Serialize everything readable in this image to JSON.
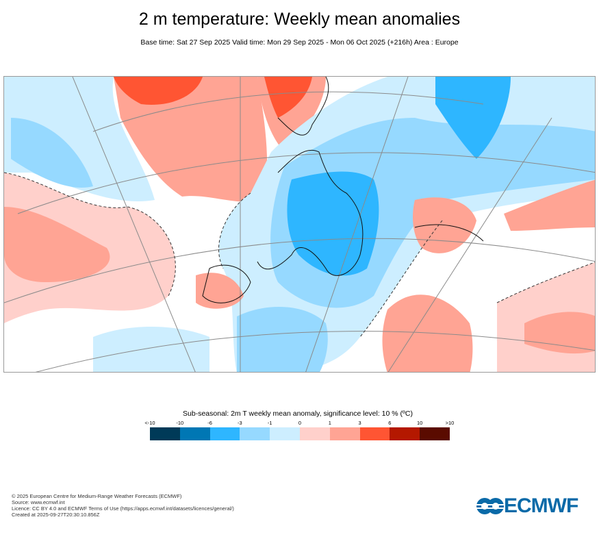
{
  "header": {
    "title": "2 m temperature: Weekly mean anomalies",
    "subtitle": "Base time: Sat 27 Sep 2025 Valid time: Mon 29 Sep 2025 - Mon 06 Oct 2025 (+216h) Area : Europe"
  },
  "map": {
    "area": "Europe",
    "summary_colors": {
      "cold_core": "#2eb6ff",
      "cool": "#96d9ff",
      "slight_cool": "#cdeeff",
      "slight_warm": "#ffd0cb",
      "warm": "#ffa494",
      "hot": "#ff5533"
    }
  },
  "colorbar": {
    "title": "Sub-seasonal: 2m T weekly mean anomaly, significance level: 10 % (ºC)",
    "ticks": [
      "<-10",
      "-10",
      "-6",
      "-3",
      "-1",
      "0",
      "1",
      "3",
      "6",
      "10",
      ">10"
    ],
    "colors": [
      "#003a58",
      "#0077b4",
      "#2eb6ff",
      "#96d9ff",
      "#cdeeff",
      "#ffd0cb",
      "#ffa494",
      "#ff5533",
      "#b41800",
      "#5a0b00"
    ]
  },
  "footer": {
    "lines": [
      "© 2025 European Centre for Medium-Range Weather Forecasts (ECMWF)",
      "Source: www.ecmwf.int",
      "Licence: CC BY 4.0 and ECMWF Terms of Use (https://apps.ecmwf.int/datasets/licences/general/)",
      "Created at 2025-09-27T20:30:10.856Z"
    ],
    "logo_text": "ECMWF"
  }
}
